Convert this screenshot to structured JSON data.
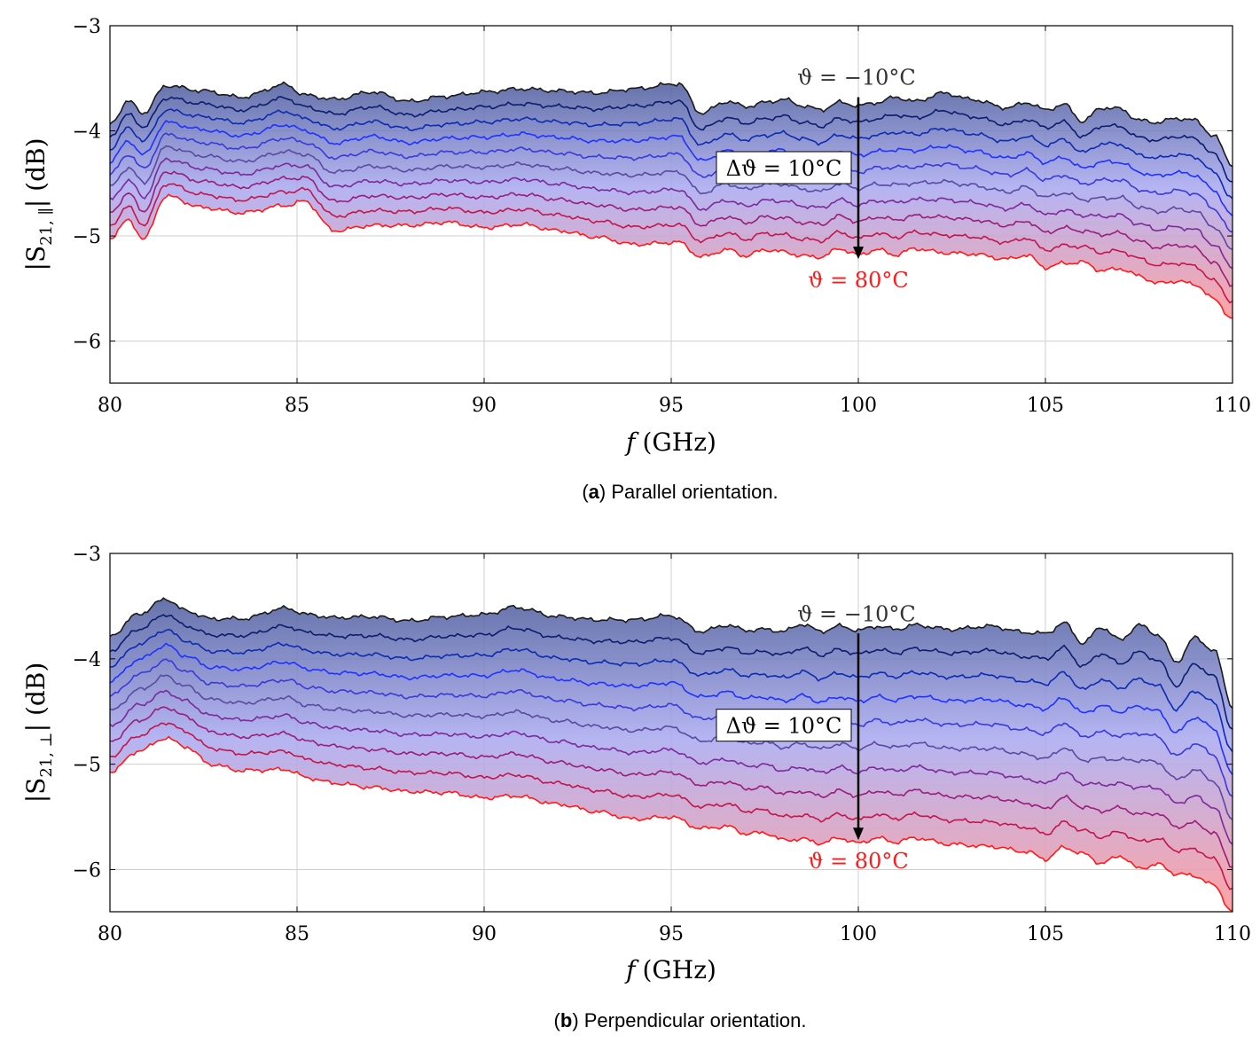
{
  "chart_data": [
    {
      "type": "area",
      "panel": "a",
      "caption_label": "a",
      "caption_text": ") Parallel orientation.",
      "xlabel_var": "f",
      "xlabel_unit": "(GHz)",
      "ylabel_main": "|S",
      "ylabel_sub": "21, ∥",
      "ylabel_unit": "| (dB)",
      "xlim": [
        80,
        110
      ],
      "ylim": [
        -6.4,
        -3
      ],
      "xticks": [
        80,
        85,
        90,
        95,
        100,
        105,
        110
      ],
      "yticks": [
        -3,
        -4,
        -5,
        -6
      ],
      "grid": true,
      "curve_count": 10,
      "top_curve_x": [
        80,
        80.5,
        80.9,
        81.5,
        82.5,
        83.5,
        84.7,
        85.2,
        86,
        87,
        88,
        89,
        90,
        91,
        92,
        93,
        94,
        95.2,
        95.8,
        96.5,
        97,
        97.5,
        98,
        98.5,
        99,
        99.5,
        100,
        100.5,
        101,
        101.5,
        102.3,
        103,
        104,
        104.5,
        105,
        105.5,
        106,
        106.5,
        107,
        107.5,
        108,
        108.5,
        109,
        109.5,
        110
      ],
      "top_curve_y": [
        -3.93,
        -3.72,
        -3.83,
        -3.57,
        -3.62,
        -3.68,
        -3.56,
        -3.66,
        -3.7,
        -3.63,
        -3.72,
        -3.67,
        -3.63,
        -3.6,
        -3.62,
        -3.64,
        -3.6,
        -3.55,
        -3.83,
        -3.72,
        -3.77,
        -3.73,
        -3.7,
        -3.76,
        -3.8,
        -3.73,
        -3.76,
        -3.73,
        -3.68,
        -3.72,
        -3.64,
        -3.7,
        -3.78,
        -3.73,
        -3.8,
        -3.75,
        -3.91,
        -3.78,
        -3.79,
        -3.9,
        -3.92,
        -3.88,
        -3.9,
        -4.05,
        -4.32
      ],
      "bottom_curve_x": [
        80,
        80.5,
        80.9,
        81.5,
        82.5,
        83.5,
        84.7,
        85.2,
        86,
        87,
        88,
        89,
        90,
        91,
        92,
        93,
        94,
        95.2,
        95.8,
        96.5,
        97,
        97.5,
        98,
        98.5,
        99,
        99.5,
        100,
        100.5,
        101,
        101.5,
        102.3,
        103,
        104,
        104.5,
        105,
        105.5,
        106,
        106.5,
        107,
        107.5,
        108,
        108.5,
        109,
        109.5,
        110
      ],
      "bottom_curve_y": [
        -5.02,
        -4.85,
        -5.03,
        -4.62,
        -4.73,
        -4.78,
        -4.71,
        -4.67,
        -4.95,
        -4.9,
        -4.9,
        -4.87,
        -4.92,
        -4.89,
        -4.95,
        -5.01,
        -5.08,
        -5.06,
        -5.2,
        -5.13,
        -5.19,
        -5.13,
        -5.15,
        -5.19,
        -5.2,
        -5.12,
        -5.18,
        -5.13,
        -5.18,
        -5.12,
        -5.16,
        -5.17,
        -5.22,
        -5.18,
        -5.3,
        -5.26,
        -5.25,
        -5.33,
        -5.31,
        -5.38,
        -5.45,
        -5.43,
        -5.46,
        -5.6,
        -5.79
      ],
      "annotation_top": "ϑ = −10°C",
      "annotation_bottom": "ϑ = 80°C",
      "annotation_step": "Δϑ = 10°C",
      "arrow_x": 100,
      "arrow_from_y": -3.68,
      "arrow_to_y": -5.22,
      "annotation_bottom_y": -5.42,
      "step_box_y": -4.35
    },
    {
      "type": "area",
      "panel": "b",
      "caption_label": "b",
      "caption_text": ") Perpendicular orientation.",
      "xlabel_var": "f",
      "xlabel_unit": "(GHz)",
      "ylabel_main": "|S",
      "ylabel_sub": "21, ⊥",
      "ylabel_unit": "| (dB)",
      "xlim": [
        80,
        110
      ],
      "ylim": [
        -6.4,
        -3
      ],
      "xticks": [
        80,
        85,
        90,
        95,
        100,
        105,
        110
      ],
      "yticks": [
        -3,
        -4,
        -5,
        -6
      ],
      "grid": true,
      "curve_count": 10,
      "top_curve_x": [
        80,
        80.8,
        81.5,
        82,
        82.7,
        83.5,
        84.7,
        85.3,
        86,
        87,
        88,
        89,
        90,
        90.8,
        92,
        93,
        94,
        95,
        95.8,
        96.5,
        97,
        97.5,
        98,
        98.5,
        99,
        99.5,
        100,
        100.5,
        101,
        101.5,
        102.5,
        103.5,
        104.5,
        105,
        105.5,
        106,
        106.5,
        107,
        107.5,
        108,
        108.5,
        109,
        109.5,
        110
      ],
      "top_curve_y": [
        -3.78,
        -3.57,
        -3.43,
        -3.54,
        -3.62,
        -3.62,
        -3.52,
        -3.58,
        -3.61,
        -3.6,
        -3.64,
        -3.6,
        -3.58,
        -3.51,
        -3.6,
        -3.63,
        -3.63,
        -3.59,
        -3.74,
        -3.68,
        -3.73,
        -3.72,
        -3.74,
        -3.67,
        -3.74,
        -3.69,
        -3.73,
        -3.69,
        -3.72,
        -3.68,
        -3.72,
        -3.69,
        -3.75,
        -3.76,
        -3.66,
        -3.85,
        -3.7,
        -3.82,
        -3.68,
        -3.77,
        -4.03,
        -3.8,
        -3.92,
        -4.45
      ],
      "bottom_curve_x": [
        80,
        80.8,
        81.5,
        82,
        82.7,
        83.5,
        84.7,
        85.3,
        86,
        87,
        88,
        89,
        90,
        90.8,
        92,
        93,
        94,
        95,
        95.8,
        96.5,
        97,
        97.5,
        98,
        98.5,
        99,
        99.5,
        100,
        100.5,
        101,
        101.5,
        102.5,
        103.5,
        104.5,
        105,
        105.5,
        106,
        106.5,
        107,
        107.5,
        108,
        108.5,
        109,
        109.5,
        110
      ],
      "bottom_curve_y": [
        -5.07,
        -4.87,
        -4.75,
        -4.83,
        -5,
        -5.06,
        -5.05,
        -5.13,
        -5.18,
        -5.22,
        -5.26,
        -5.27,
        -5.32,
        -5.3,
        -5.38,
        -5.45,
        -5.52,
        -5.5,
        -5.61,
        -5.59,
        -5.66,
        -5.65,
        -5.72,
        -5.71,
        -5.75,
        -5.7,
        -5.75,
        -5.7,
        -5.74,
        -5.7,
        -5.76,
        -5.78,
        -5.83,
        -5.9,
        -5.79,
        -5.85,
        -5.94,
        -5.87,
        -5.99,
        -5.95,
        -6.04,
        -6.06,
        -6.15,
        -6.4
      ],
      "annotation_top": "ϑ = −10°C",
      "annotation_bottom": "ϑ = 80°C",
      "annotation_step": "Δϑ = 10°C",
      "arrow_x": 100,
      "arrow_from_y": -3.76,
      "arrow_to_y": -5.72,
      "annotation_bottom_y": -5.92,
      "step_box_y": -4.63
    }
  ],
  "colors": {
    "curves": [
      "#1a1a1a",
      "#0b1d6e",
      "#0d2bb0",
      "#1f32ff",
      "#3a3ad8",
      "#5a4aa0",
      "#7b2a9a",
      "#9a1d7a",
      "#c4154a",
      "#ff1a1a"
    ],
    "fill_top": "#4a5a9a",
    "fill_mid": "#a8a8f0",
    "fill_bottom": "#ff9a9a",
    "annotation_bottom": "#ff1a1a",
    "annotation_top": "#333333",
    "grid": "#cfcfcf"
  }
}
